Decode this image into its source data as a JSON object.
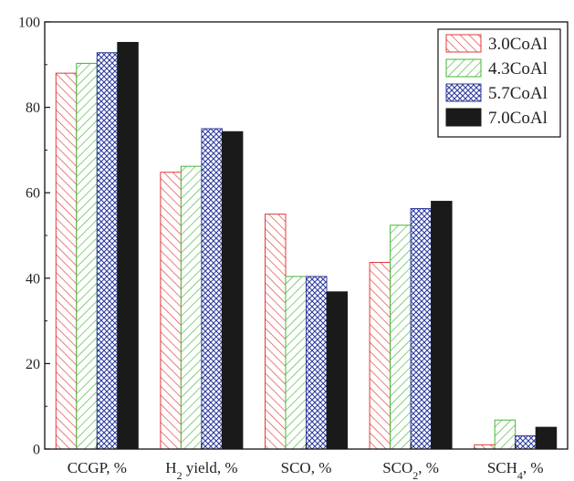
{
  "chart_data": {
    "type": "bar",
    "categories": [
      {
        "main": "CCGP, %",
        "parts": []
      },
      {
        "main": "H2 yield, %",
        "parts": [
          {
            "t": "H"
          },
          {
            "t": "2",
            "sub": true
          },
          {
            "t": " yield, %"
          }
        ]
      },
      {
        "main": "SCO, %",
        "parts": []
      },
      {
        "main": "SCO2, %",
        "parts": [
          {
            "t": "SCO"
          },
          {
            "t": "2",
            "sub": true
          },
          {
            "t": ", %"
          }
        ]
      },
      {
        "main": "SCH4, %",
        "parts": [
          {
            "t": "SCH"
          },
          {
            "t": "4",
            "sub": true
          },
          {
            "t": ", %"
          }
        ]
      }
    ],
    "series": [
      {
        "name": "3.0CoAl",
        "values": [
          88,
          64.8,
          55,
          43.7,
          1
        ],
        "color": "#e0393b",
        "pattern": "diag-right"
      },
      {
        "name": "4.3CoAl",
        "values": [
          90.3,
          66.2,
          40.4,
          52.4,
          6.8
        ],
        "color": "#49b53a",
        "pattern": "diag-left"
      },
      {
        "name": "5.7CoAl",
        "values": [
          92.8,
          75,
          40.4,
          56.3,
          3.1
        ],
        "color": "#2f3e9e",
        "pattern": "crosshatch"
      },
      {
        "name": "7.0CoAl",
        "values": [
          95.2,
          74.3,
          36.8,
          58,
          5.1
        ],
        "color": "#1a1a1a",
        "pattern": "solid"
      }
    ],
    "y_ticks": [
      0,
      20,
      40,
      60,
      80,
      100
    ],
    "ylim": [
      0,
      100
    ],
    "grid": false,
    "legend_position": "top-right"
  }
}
